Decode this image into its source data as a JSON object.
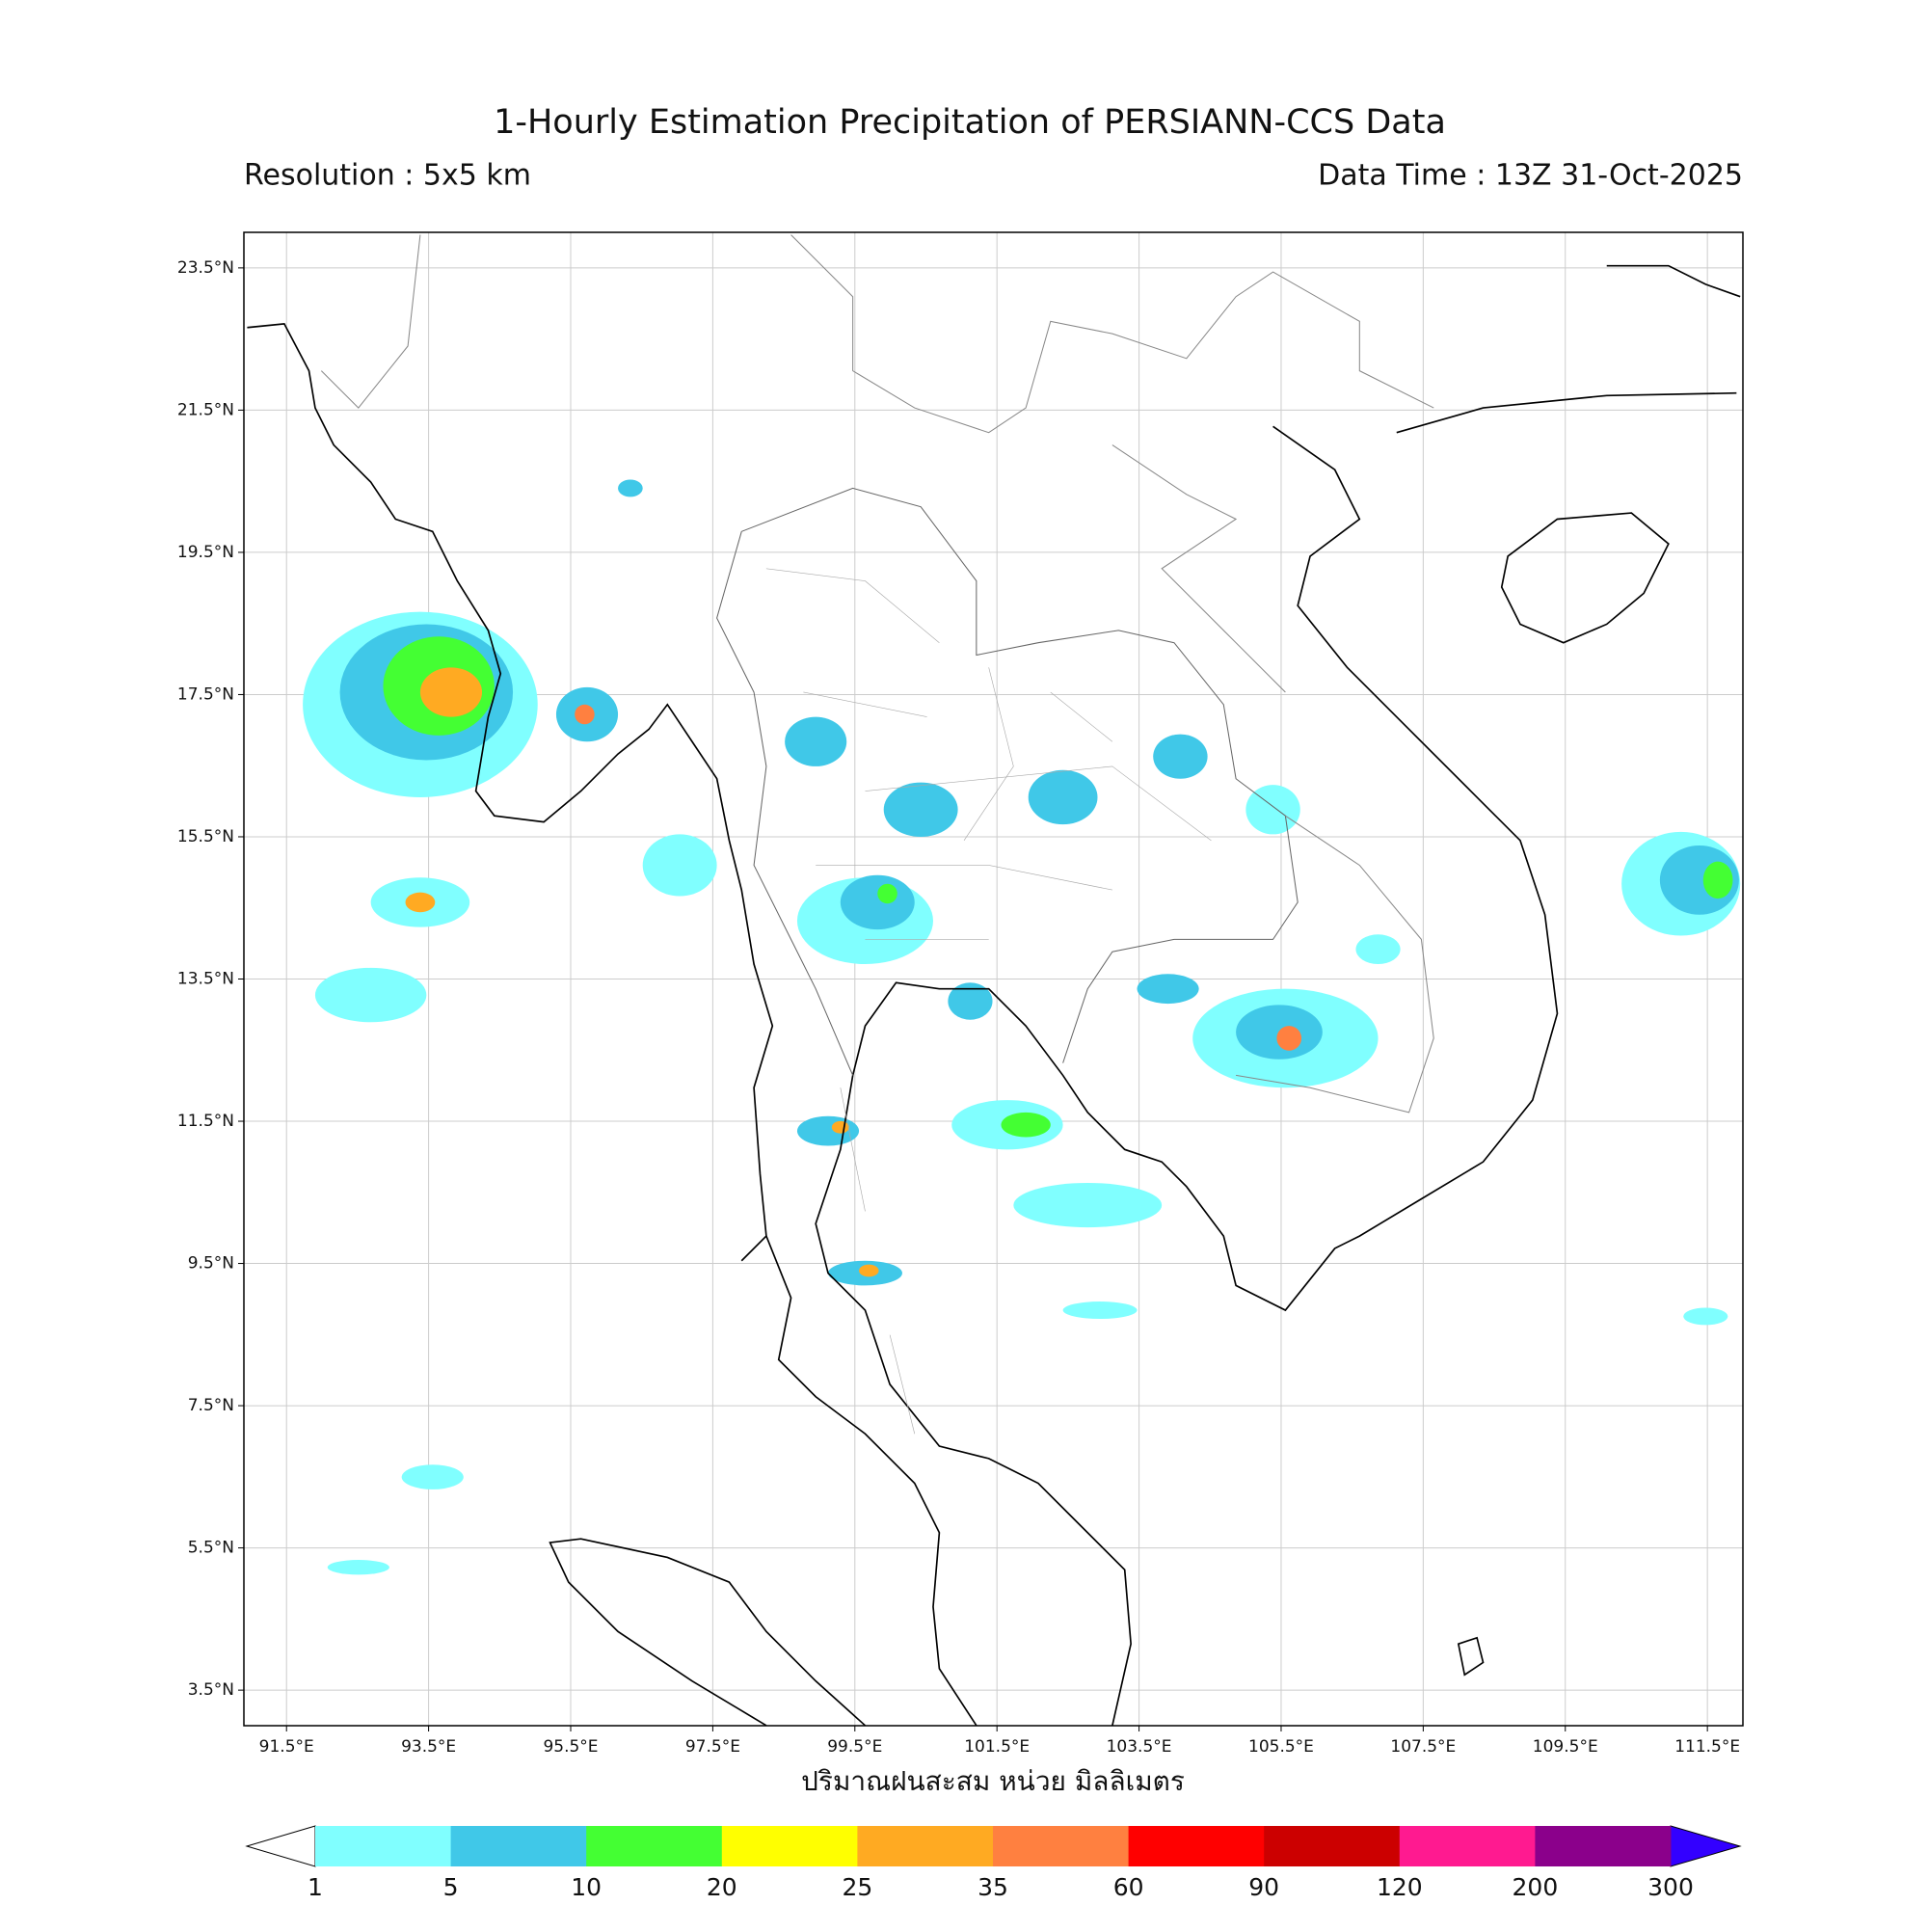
{
  "header": {
    "title": "1-Hourly Estimation Precipitation of PERSIANN-CCS Data",
    "resolution": "Resolution : 5x5 km",
    "data_time": "Data Time : 13Z 31-Oct-2025"
  },
  "map": {
    "xlim": [
      90.9,
      112.0
    ],
    "ylim": [
      3.0,
      24.0
    ],
    "xticks": [
      {
        "value": 91.5,
        "label": "91.5°E"
      },
      {
        "value": 93.5,
        "label": "93.5°E"
      },
      {
        "value": 95.5,
        "label": "95.5°E"
      },
      {
        "value": 97.5,
        "label": "97.5°E"
      },
      {
        "value": 99.5,
        "label": "99.5°E"
      },
      {
        "value": 101.5,
        "label": "101.5°E"
      },
      {
        "value": 103.5,
        "label": "103.5°E"
      },
      {
        "value": 105.5,
        "label": "105.5°E"
      },
      {
        "value": 107.5,
        "label": "107.5°E"
      },
      {
        "value": 109.5,
        "label": "109.5°E"
      },
      {
        "value": 111.5,
        "label": "111.5°E"
      }
    ],
    "yticks": [
      {
        "value": 23.5,
        "label": "23.5°N"
      },
      {
        "value": 21.5,
        "label": "21.5°N"
      },
      {
        "value": 19.5,
        "label": "19.5°N"
      },
      {
        "value": 17.5,
        "label": "17.5°N"
      },
      {
        "value": 15.5,
        "label": "15.5°N"
      },
      {
        "value": 13.5,
        "label": "13.5°N"
      },
      {
        "value": 11.5,
        "label": "11.5°N"
      },
      {
        "value": 9.5,
        "label": "9.5°N"
      },
      {
        "value": 7.5,
        "label": "7.5°N"
      },
      {
        "value": 5.5,
        "label": "5.5°N"
      },
      {
        "value": 3.5,
        "label": "3.5°N"
      }
    ],
    "x_label": "ปริมาณฝนสะสม หน่วย มิลลิเมตร"
  },
  "colorbar": {
    "levels": [
      1,
      5,
      10,
      20,
      25,
      35,
      60,
      90,
      120,
      200,
      300
    ],
    "colors": [
      "#80ffff",
      "#40c8e8",
      "#44ff33",
      "#ffff00",
      "#ffaa22",
      "#ff8040",
      "#ff0000",
      "#cc0000",
      "#ff1a90",
      "#8b008b"
    ],
    "under_color": "#ffffff",
    "over_color": "#3300ff"
  }
}
